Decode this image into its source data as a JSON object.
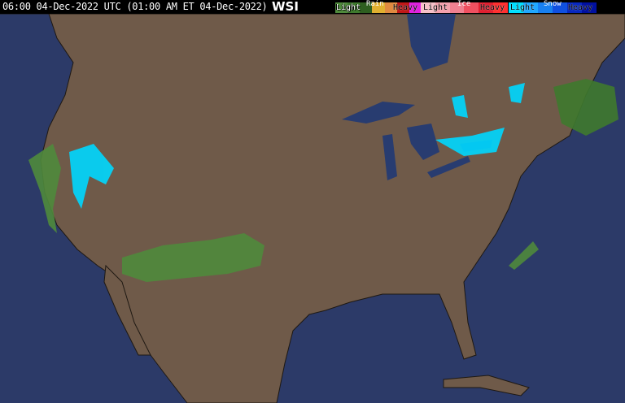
{
  "header": {
    "timestamp": "06:00 04-Dec-2022 UTC  (01:00 AM ET 04-Dec-2022)",
    "logo": "WSI"
  },
  "legend": [
    {
      "title": "Rain",
      "light": "Light",
      "heavy": "Heavy",
      "colors": [
        "#4f8a3c",
        "#3f7a2e",
        "#2e5f20",
        "#e0b030",
        "#e08a40",
        "#c01818",
        "#e020e0"
      ]
    },
    {
      "title": "Ice",
      "light": "Light",
      "heavy": "Heavy",
      "colors": [
        "#f6c0c8",
        "#f4a0ac",
        "#f08090",
        "#f05060",
        "#e02030",
        "#ff3030"
      ]
    },
    {
      "title": "Snow",
      "light": "Light",
      "heavy": "Heavy",
      "colors": [
        "#00e0ff",
        "#20a8ff",
        "#1880f0",
        "#1050e0",
        "#0828c0",
        "#0010a0"
      ]
    }
  ],
  "colors": {
    "ocean": "#2c3a68",
    "land": "#6f5a49",
    "border": "#1e1812",
    "lake": "#283c70"
  }
}
